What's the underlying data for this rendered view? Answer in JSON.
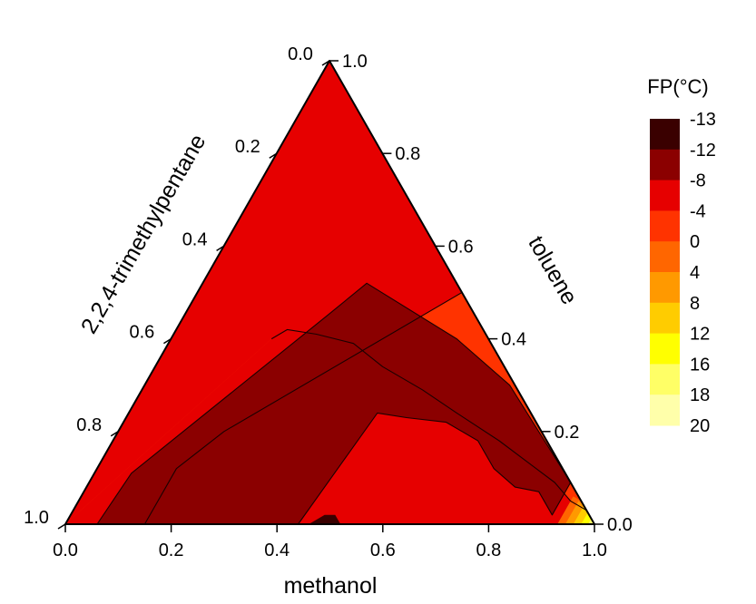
{
  "chart_data": {
    "type": "ternary-contour",
    "axes": {
      "bottom": {
        "label": "methanol",
        "ticks": [
          "0.0",
          "0.2",
          "0.4",
          "0.6",
          "0.8",
          "1.0"
        ]
      },
      "left": {
        "label": "2,2,4-trimethylpentane",
        "ticks": [
          "1.0",
          "0.8",
          "0.6",
          "0.4",
          "0.2",
          "0.0"
        ]
      },
      "right": {
        "label": "toluene",
        "ticks": [
          "0.0",
          "0.2",
          "0.4",
          "0.6",
          "0.8",
          "1.0"
        ]
      }
    },
    "colorbar": {
      "title": "FP(°C)",
      "levels": [
        "-13",
        "-12",
        "-8",
        "-4",
        "0",
        "4",
        "8",
        "12",
        "16",
        "18",
        "20"
      ],
      "colors": [
        "#3a0000",
        "#8b0000",
        "#e60000",
        "#ff3300",
        "#ff6600",
        "#ff9900",
        "#ffcc00",
        "#ffff00",
        "#ffff66",
        "#ffffaa"
      ]
    },
    "regions": [
      {
        "level": "0",
        "color": "#ff6600",
        "vertices": [
          [
            0.5,
            0.5,
            0.0
          ],
          [
            0.2,
            0.2,
            0.6
          ],
          [
            0.15,
            0.12,
            0.73
          ],
          [
            0.15,
            0.0,
            0.85
          ],
          [
            0.5,
            0.0,
            0.5
          ]
        ]
      },
      {
        "level": "-4",
        "color": "#ff3300",
        "vertices": [
          [
            0.15,
            0.0,
            0.85
          ],
          [
            0.15,
            0.12,
            0.73
          ],
          [
            0.2,
            0.2,
            0.6
          ],
          [
            0.5,
            0.5,
            0.0
          ],
          [
            0.97,
            0.03,
            0.0
          ],
          [
            0.93,
            0.05,
            0.02
          ],
          [
            0.88,
            0.09,
            0.03
          ],
          [
            0.83,
            0.12,
            0.05
          ],
          [
            0.73,
            0.18,
            0.09
          ],
          [
            0.62,
            0.24,
            0.14
          ],
          [
            0.53,
            0.29,
            0.18
          ],
          [
            0.43,
            0.34,
            0.23
          ],
          [
            0.35,
            0.39,
            0.26
          ],
          [
            0.27,
            0.41,
            0.32
          ],
          [
            0.21,
            0.42,
            0.37
          ],
          [
            0.19,
            0.4,
            0.41
          ],
          [
            0.0,
            0.0,
            1.0
          ]
        ]
      },
      {
        "level": "-8",
        "color": "#e60000",
        "vertices": [
          [
            0.0,
            0.0,
            1.0
          ],
          [
            0.19,
            0.4,
            0.41
          ],
          [
            0.21,
            0.42,
            0.37
          ],
          [
            0.27,
            0.41,
            0.32
          ],
          [
            0.35,
            0.39,
            0.26
          ],
          [
            0.43,
            0.34,
            0.23
          ],
          [
            0.53,
            0.29,
            0.18
          ],
          [
            0.62,
            0.24,
            0.14
          ],
          [
            0.73,
            0.18,
            0.09
          ],
          [
            0.83,
            0.12,
            0.05
          ],
          [
            0.88,
            0.09,
            0.03
          ],
          [
            0.93,
            0.05,
            0.02
          ],
          [
            0.97,
            0.03,
            0.0
          ],
          [
            1.0,
            0.0,
            0.0
          ]
        ]
      },
      {
        "level": "-12",
        "color": "#8b0000",
        "vertices": [
          [
            0.06,
            0.0,
            0.94
          ],
          [
            0.07,
            0.11,
            0.82
          ],
          [
            0.27,
            0.45,
            0.28
          ],
          [
            0.31,
            0.52,
            0.17
          ],
          [
            0.54,
            0.4,
            0.06
          ],
          [
            0.69,
            0.3,
            0.01
          ],
          [
            0.91,
            0.09,
            0.0
          ],
          [
            0.91,
            0.02,
            0.07
          ],
          [
            0.86,
            0.07,
            0.07
          ],
          [
            0.81,
            0.08,
            0.11
          ],
          [
            0.75,
            0.12,
            0.13
          ],
          [
            0.69,
            0.18,
            0.13
          ],
          [
            0.61,
            0.22,
            0.17
          ],
          [
            0.53,
            0.23,
            0.24
          ],
          [
            0.47,
            0.24,
            0.29
          ],
          [
            0.44,
            0.0,
            0.56
          ]
        ]
      },
      {
        "level": "-13",
        "color": "#3a0000",
        "vertices": [
          [
            0.46,
            0.0,
            0.54
          ],
          [
            0.48,
            0.02,
            0.5
          ],
          [
            0.5,
            0.02,
            0.48
          ],
          [
            0.52,
            0.0,
            0.48
          ]
        ]
      },
      {
        "level": "0",
        "color": "#ff6600",
        "vertices": [
          [
            0.93,
            0.0,
            0.07
          ],
          [
            0.93,
            0.06,
            0.01
          ],
          [
            0.95,
            0.05,
            0.0
          ],
          [
            1.0,
            0.0,
            0.0
          ]
        ]
      },
      {
        "level": "4",
        "color": "#ff9900",
        "vertices": [
          [
            0.945,
            0.0,
            0.055
          ],
          [
            0.945,
            0.05,
            0.005
          ],
          [
            0.96,
            0.04,
            0.0
          ],
          [
            1.0,
            0.0,
            0.0
          ]
        ]
      },
      {
        "level": "8",
        "color": "#ffcc00",
        "vertices": [
          [
            0.96,
            0.0,
            0.04
          ],
          [
            0.96,
            0.04,
            0.0
          ],
          [
            1.0,
            0.0,
            0.0
          ]
        ]
      },
      {
        "level": "12",
        "color": "#ffff00",
        "vertices": [
          [
            0.975,
            0.0,
            0.025
          ],
          [
            0.975,
            0.025,
            0.0
          ],
          [
            1.0,
            0.0,
            0.0
          ]
        ]
      },
      {
        "level": "16",
        "color": "#ffff66",
        "vertices": [
          [
            0.988,
            0.0,
            0.012
          ],
          [
            0.988,
            0.012,
            0.0
          ],
          [
            1.0,
            0.0,
            0.0
          ]
        ]
      }
    ],
    "contour_lines": [
      {
        "level": "0",
        "points": [
          [
            0.5,
            0.5,
            0.0
          ],
          [
            0.2,
            0.2,
            0.6
          ],
          [
            0.15,
            0.12,
            0.73
          ],
          [
            0.15,
            0.0,
            0.85
          ]
        ]
      },
      {
        "level": "-4",
        "points": [
          [
            0.19,
            0.4,
            0.41
          ],
          [
            0.21,
            0.42,
            0.37
          ],
          [
            0.27,
            0.41,
            0.32
          ],
          [
            0.35,
            0.39,
            0.26
          ],
          [
            0.43,
            0.34,
            0.23
          ],
          [
            0.53,
            0.29,
            0.18
          ],
          [
            0.62,
            0.24,
            0.14
          ],
          [
            0.73,
            0.18,
            0.09
          ],
          [
            0.83,
            0.12,
            0.05
          ],
          [
            0.88,
            0.09,
            0.03
          ],
          [
            0.93,
            0.05,
            0.02
          ],
          [
            0.97,
            0.03,
            0.0
          ]
        ]
      },
      {
        "level": "-8",
        "points": [
          [
            0.06,
            0.0,
            0.94
          ],
          [
            0.07,
            0.11,
            0.82
          ],
          [
            0.27,
            0.45,
            0.28
          ],
          [
            0.31,
            0.52,
            0.17
          ],
          [
            0.54,
            0.4,
            0.06
          ],
          [
            0.69,
            0.3,
            0.01
          ],
          [
            0.91,
            0.09,
            0.0
          ],
          [
            0.91,
            0.02,
            0.07
          ],
          [
            0.86,
            0.07,
            0.07
          ],
          [
            0.81,
            0.08,
            0.11
          ],
          [
            0.75,
            0.12,
            0.13
          ],
          [
            0.69,
            0.18,
            0.13
          ],
          [
            0.61,
            0.22,
            0.17
          ],
          [
            0.53,
            0.23,
            0.24
          ],
          [
            0.47,
            0.24,
            0.29
          ],
          [
            0.44,
            0.0,
            0.56
          ]
        ]
      }
    ]
  }
}
